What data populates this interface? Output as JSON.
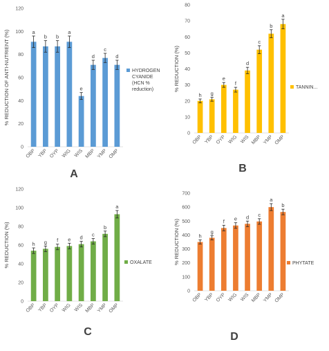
{
  "chart_data": [
    {
      "type": "bar",
      "panel_label": "A",
      "categories": [
        "OBP",
        "YBP",
        "OYP",
        "WIG",
        "WIS",
        "MBP",
        "YMP",
        "OMP"
      ],
      "series": [
        {
          "name": "HYDROGEN CYANIDE (HCN % reduction)",
          "legend_lines": [
            "HYDROGEN",
            "CYANIDE",
            "(HCN %",
            "reduction)"
          ],
          "values": [
            91,
            87,
            87,
            91,
            44,
            71,
            77,
            71
          ],
          "errors": [
            5,
            5,
            5,
            5,
            3,
            4,
            4,
            4
          ],
          "significance": [
            "a",
            "b",
            "b",
            "a",
            "e",
            "d",
            "c",
            "d"
          ],
          "color": "#5B9BD5"
        }
      ],
      "ylabel": "% REDUCTION OF ANTI-NUTRIENT (%)",
      "ylim": [
        0,
        120
      ],
      "yticks": [
        0,
        20,
        40,
        60,
        80,
        100,
        120
      ],
      "grid": false,
      "legend_position": "right"
    },
    {
      "type": "bar",
      "panel_label": "B",
      "categories": [
        "OBP",
        "YBP",
        "OYP",
        "WIG",
        "WIS",
        "MBP",
        "YMP",
        "OMP"
      ],
      "series": [
        {
          "name": "TANNIN...",
          "legend_lines": [
            "TANNIN..."
          ],
          "values": [
            20,
            21,
            30,
            27,
            39,
            52,
            62,
            68
          ],
          "errors": [
            1.2,
            1.2,
            1.5,
            1.5,
            2,
            2.5,
            2.5,
            3
          ],
          "significance": [
            "h",
            "g",
            "e",
            "f",
            "d",
            "c",
            "b",
            "a"
          ],
          "color": "#FFC000"
        }
      ],
      "ylabel": "% REDUCTION (%)",
      "ylim": [
        0,
        80
      ],
      "yticks": [
        0,
        10,
        20,
        30,
        40,
        50,
        60,
        70,
        80
      ],
      "grid": false,
      "legend_position": "right"
    },
    {
      "type": "bar",
      "panel_label": "C",
      "categories": [
        "OBP",
        "YBP",
        "OYP",
        "WIG",
        "WIS",
        "MBP",
        "YMP",
        "OMP"
      ],
      "series": [
        {
          "name": "OXALATE",
          "legend_lines": [
            "OXALATE"
          ],
          "values": [
            54,
            56,
            58,
            59,
            61,
            64,
            72,
            93
          ],
          "errors": [
            3,
            3,
            3,
            3,
            3,
            3,
            3,
            4
          ],
          "significance": [
            "h",
            "g",
            "f",
            "e",
            "d",
            "c",
            "b",
            "a"
          ],
          "color": "#70AD47"
        }
      ],
      "ylabel": "% REDUCTION (%)",
      "ylim": [
        0,
        120
      ],
      "yticks": [
        0,
        20,
        40,
        60,
        80,
        100,
        120
      ],
      "grid": false,
      "legend_position": "right"
    },
    {
      "type": "bar",
      "panel_label": "D",
      "categories": [
        "OBP",
        "YBP",
        "OYP",
        "WIG",
        "WIS",
        "MBP",
        "YMP",
        "OMP"
      ],
      "series": [
        {
          "name": "PHYTATE",
          "legend_lines": [
            "PHYTATE"
          ],
          "values": [
            350,
            380,
            450,
            468,
            480,
            497,
            600,
            565
          ],
          "errors": [
            15,
            15,
            20,
            20,
            20,
            20,
            25,
            20
          ],
          "significance": [
            "h",
            "g",
            "f",
            "e",
            "d",
            "c",
            "a",
            "b"
          ],
          "color": "#ED7D31"
        }
      ],
      "ylabel": "% REDUCTION (%)",
      "ylim": [
        0,
        700
      ],
      "yticks": [
        0,
        100,
        200,
        300,
        400,
        500,
        600,
        700
      ],
      "grid": false,
      "legend_position": "right"
    }
  ]
}
